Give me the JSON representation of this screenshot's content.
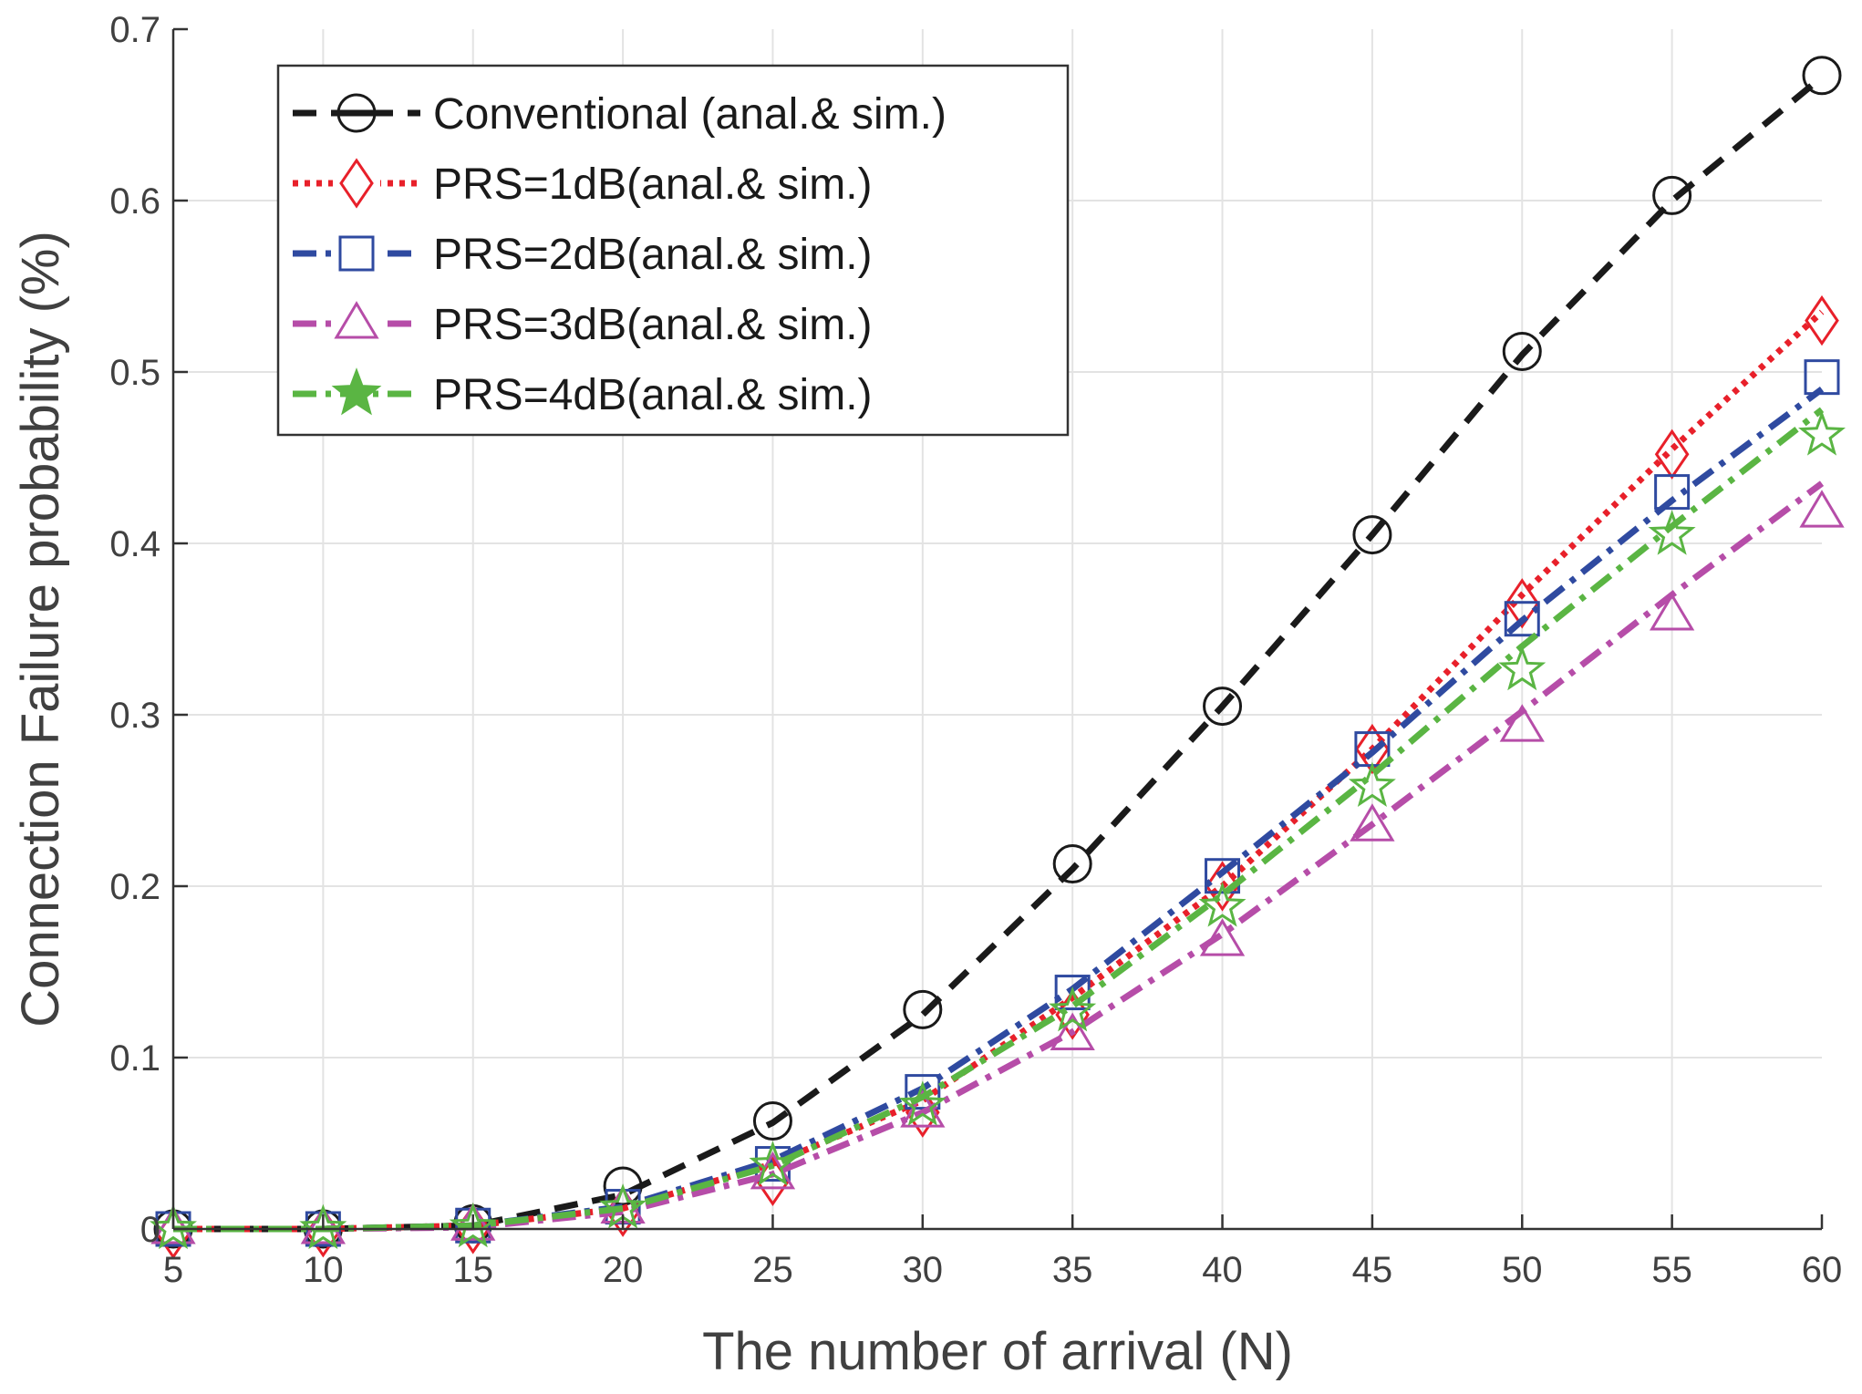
{
  "chart_data": {
    "type": "line",
    "title": "",
    "xlabel": "The number of arrival (N)",
    "ylabel": "Connection Failure probability (%)",
    "x": [
      5,
      10,
      15,
      20,
      25,
      30,
      35,
      40,
      45,
      50,
      55,
      60
    ],
    "xlim": [
      5,
      60
    ],
    "ylim": [
      0,
      0.7
    ],
    "xticks": [
      5,
      10,
      15,
      20,
      25,
      30,
      35,
      40,
      45,
      50,
      55,
      60
    ],
    "xtick_labels": [
      "5",
      "10",
      "15",
      "20",
      "25",
      "30",
      "35",
      "40",
      "45",
      "50",
      "55",
      "60"
    ],
    "yticks": [
      0,
      0.1,
      0.2,
      0.3,
      0.4,
      0.5,
      0.6,
      0.7
    ],
    "ytick_labels": [
      "0",
      "0.1",
      "0.2",
      "0.3",
      "0.4",
      "0.5",
      "0.6",
      "0.7"
    ],
    "grid": true,
    "legend_position": "top-left",
    "series": [
      {
        "name": "Conventional (anal.& sim.)",
        "color": "#1a1a1a",
        "line_style": "dashed",
        "marker": "circle",
        "analytical": [
          0,
          0,
          0.002,
          0.02,
          0.062,
          0.125,
          0.21,
          0.305,
          0.405,
          0.51,
          0.6,
          0.672
        ],
        "simulation": [
          0,
          0,
          0.003,
          0.025,
          0.063,
          0.128,
          0.213,
          0.305,
          0.405,
          0.512,
          0.603,
          0.673
        ]
      },
      {
        "name": "PRS=1dB(anal.& sim.)",
        "color": "#e8202a",
        "line_style": "dotted",
        "marker": "diamond",
        "analytical": [
          0,
          0,
          0.002,
          0.012,
          0.038,
          0.075,
          0.135,
          0.2,
          0.28,
          0.37,
          0.455,
          0.535
        ],
        "simulation": [
          -0.003,
          -0.002,
          0,
          0.01,
          0.028,
          0.068,
          0.125,
          0.2,
          0.28,
          0.365,
          0.452,
          0.53
        ]
      },
      {
        "name": "PRS=2dB(anal.& sim.)",
        "color": "#2f4aa0",
        "line_style": "dashdot",
        "marker": "square",
        "analytical": [
          0,
          0,
          0.002,
          0.013,
          0.04,
          0.082,
          0.14,
          0.208,
          0.278,
          0.355,
          0.425,
          0.49
        ],
        "simulation": [
          0,
          0,
          0.002,
          0.013,
          0.038,
          0.08,
          0.138,
          0.206,
          0.28,
          0.356,
          0.43,
          0.497
        ]
      },
      {
        "name": "PRS=3dB(anal.& sim.)",
        "color": "#b64da8",
        "line_style": "dashdot",
        "marker": "triangle",
        "analytical": [
          0,
          0,
          0.001,
          0.01,
          0.032,
          0.068,
          0.115,
          0.172,
          0.236,
          0.302,
          0.37,
          0.435
        ],
        "simulation": [
          0,
          0,
          0.002,
          0.012,
          0.032,
          0.068,
          0.113,
          0.168,
          0.235,
          0.293,
          0.358,
          0.418
        ]
      },
      {
        "name": "PRS=4dB(anal.& sim.)",
        "color": "#5ab543",
        "line_style": "dashdot",
        "marker": "star",
        "analytical": [
          0,
          0,
          0.002,
          0.012,
          0.037,
          0.077,
          0.13,
          0.195,
          0.265,
          0.34,
          0.41,
          0.478
        ],
        "simulation": [
          0,
          0,
          0.001,
          0.012,
          0.037,
          0.072,
          0.127,
          0.188,
          0.258,
          0.326,
          0.405,
          0.463
        ]
      }
    ]
  }
}
